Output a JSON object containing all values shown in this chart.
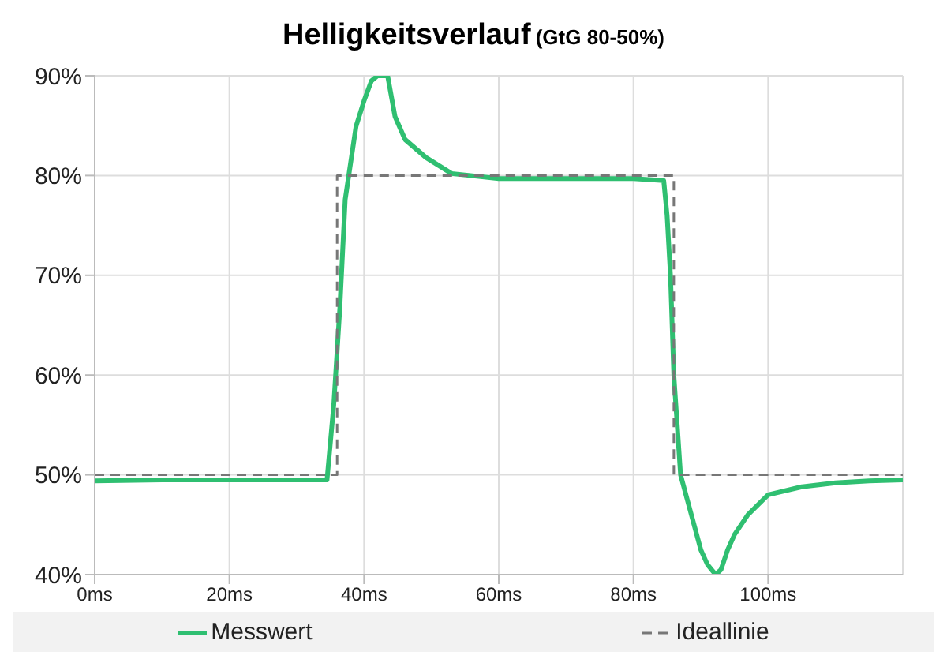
{
  "chart_data": {
    "type": "line",
    "title": "Helligkeitsverlauf",
    "subtitle": "(GtG 80-50%)",
    "xlim": [
      0,
      120
    ],
    "xticks": [
      {
        "value": 0,
        "label": "0ms"
      },
      {
        "value": 20,
        "label": "20ms"
      },
      {
        "value": 40,
        "label": "40ms"
      },
      {
        "value": 60,
        "label": "60ms"
      },
      {
        "value": 80,
        "label": "80ms"
      },
      {
        "value": 100,
        "label": "100ms"
      }
    ],
    "ylim": [
      40,
      90
    ],
    "yticks": [
      {
        "value": 40,
        "label": "40%"
      },
      {
        "value": 50,
        "label": "50%"
      },
      {
        "value": 60,
        "label": "60%"
      },
      {
        "value": 70,
        "label": "70%"
      },
      {
        "value": 80,
        "label": "80%"
      },
      {
        "value": 90,
        "label": "90%"
      }
    ],
    "grid": true,
    "legend": "bottom",
    "marker": "none",
    "series": [
      {
        "name": "Messwert",
        "color": "#2fbf71",
        "line_style": "solid",
        "x": [
          0,
          10,
          20,
          30,
          34.5,
          35.5,
          36.4,
          37.2,
          38.8,
          40,
          41.1,
          42,
          43.5,
          44.6,
          46.1,
          49.2,
          53,
          60,
          70,
          80,
          84.5,
          85,
          85.5,
          86,
          87,
          88,
          89,
          90,
          91,
          92.2,
          93,
          94,
          95,
          97,
          100,
          105,
          110,
          115,
          120
        ],
        "values": [
          49.4,
          49.5,
          49.5,
          49.5,
          49.5,
          57,
          66.7,
          77.6,
          84.9,
          87.5,
          89.5,
          90,
          90,
          85.9,
          83.6,
          81.8,
          80.2,
          79.7,
          79.7,
          79.7,
          79.5,
          76,
          70,
          60,
          50,
          47.5,
          45,
          42.5,
          41,
          40,
          40.5,
          42.5,
          44,
          46,
          48,
          48.8,
          49.2,
          49.4,
          49.5
        ]
      },
      {
        "name": "Ideallinie",
        "color": "#777777",
        "line_style": "dashed",
        "x": [
          0,
          36,
          36,
          86,
          86,
          120
        ],
        "values": [
          50,
          50,
          80,
          80,
          50,
          50
        ]
      }
    ]
  }
}
